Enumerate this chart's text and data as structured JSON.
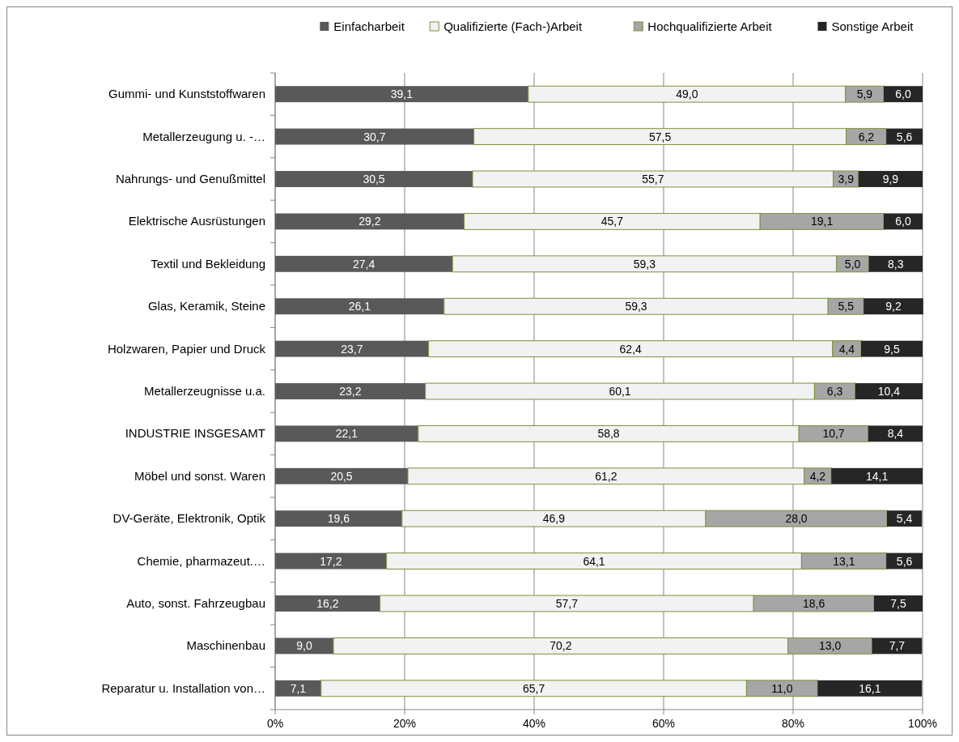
{
  "chart_data": {
    "type": "bar",
    "orientation": "horizontal",
    "stacked": true,
    "categories": [
      "Gummi- und Kunststoffwaren",
      "Metallerzeugung u. -…",
      "Nahrungs- und Genußmittel",
      "Elektrische Ausrüstungen",
      "Textil und Bekleidung",
      "Glas, Keramik, Steine",
      "Holzwaren, Papier und Druck",
      "Metallerzeugnisse u.a.",
      "INDUSTRIE INSGESAMT",
      "Möbel und  sonst. Waren",
      "DV-Geräte, Elektronik, Optik",
      "Chemie, pharmazeut.…",
      "Auto, sonst. Fahrzeugbau",
      "Maschinenbau",
      "Reparatur u. Installation von…"
    ],
    "series": [
      {
        "name": "Einfacharbeit",
        "color": "#595959",
        "values": [
          39.1,
          30.7,
          30.5,
          29.2,
          27.4,
          26.1,
          23.7,
          23.2,
          22.1,
          20.5,
          19.6,
          17.2,
          16.2,
          9.0,
          7.1
        ],
        "value_labels": [
          "39,1",
          "30,7",
          "30,5",
          "29,2",
          "27,4",
          "26,1",
          "23,7",
          "23,2",
          "22,1",
          "20,5",
          "19,6",
          "17,2",
          "16,2",
          "9,0",
          "7,1"
        ]
      },
      {
        "name": "Qualifizierte (Fach-)Arbeit",
        "color": "#f2f2f2",
        "values": [
          49.0,
          57.5,
          55.7,
          45.7,
          59.3,
          59.3,
          62.4,
          60.1,
          58.8,
          61.2,
          46.9,
          64.1,
          57.7,
          70.2,
          65.7
        ],
        "value_labels": [
          "49,0",
          "57,5",
          "55,7",
          "45,7",
          "59,3",
          "59,3",
          "62,4",
          "60,1",
          "58,8",
          "61,2",
          "46,9",
          "64,1",
          "57,7",
          "70,2",
          "65,7"
        ]
      },
      {
        "name": "Hochqualifizierte Arbeit",
        "color": "#a6a6a6",
        "values": [
          5.9,
          6.2,
          3.9,
          19.1,
          5.0,
          5.5,
          4.4,
          6.3,
          10.7,
          4.2,
          28.0,
          13.1,
          18.6,
          13.0,
          11.0
        ],
        "value_labels": [
          "5,9",
          "6,2",
          "3,9",
          "19,1",
          "5,0",
          "5,5",
          "4,4",
          "6,3",
          "10,7",
          "4,2",
          "28,0",
          "13,1",
          "18,6",
          "13,0",
          "11,0"
        ]
      },
      {
        "name": "Sonstige Arbeit",
        "color": "#262626",
        "values": [
          6.0,
          5.6,
          9.9,
          6.0,
          8.3,
          9.2,
          9.5,
          10.4,
          8.4,
          14.1,
          5.4,
          5.6,
          7.5,
          7.7,
          16.1
        ],
        "value_labels": [
          "6,0",
          "5,6",
          "9,9",
          "6,0",
          "8,3",
          "9,2",
          "9,5",
          "10,4",
          "8,4",
          "14,1",
          "5,4",
          "5,6",
          "7,5",
          "7,7",
          "16,1"
        ]
      }
    ],
    "xlim": [
      0,
      100
    ],
    "xticks": [
      {
        "value": 0,
        "label": "0%"
      },
      {
        "value": 20,
        "label": "20%"
      },
      {
        "value": 40,
        "label": "40%"
      },
      {
        "value": 60,
        "label": "60%"
      },
      {
        "value": 80,
        "label": "80%"
      },
      {
        "value": 100,
        "label": "100%"
      }
    ],
    "grid": "x",
    "legend": "top right"
  }
}
